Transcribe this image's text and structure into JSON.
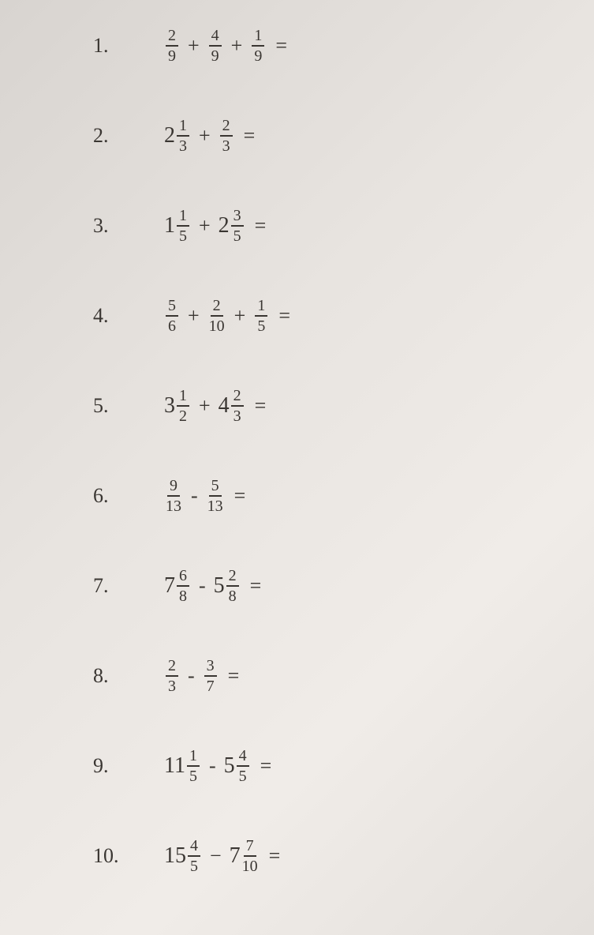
{
  "problems": [
    {
      "number": "1.",
      "terms": [
        {
          "type": "frac",
          "num": "2",
          "den": "9"
        },
        {
          "type": "op",
          "val": "+"
        },
        {
          "type": "frac",
          "num": "4",
          "den": "9"
        },
        {
          "type": "op",
          "val": "+"
        },
        {
          "type": "frac",
          "num": "1",
          "den": "9"
        },
        {
          "type": "eq",
          "val": "="
        }
      ]
    },
    {
      "number": "2.",
      "terms": [
        {
          "type": "mixed",
          "whole": "2",
          "num": "1",
          "den": "3"
        },
        {
          "type": "op",
          "val": "+"
        },
        {
          "type": "frac",
          "num": "2",
          "den": "3"
        },
        {
          "type": "eq",
          "val": "="
        }
      ]
    },
    {
      "number": "3.",
      "terms": [
        {
          "type": "mixed",
          "whole": "1",
          "num": "1",
          "den": "5"
        },
        {
          "type": "op",
          "val": "+"
        },
        {
          "type": "mixed",
          "whole": "2",
          "num": "3",
          "den": "5"
        },
        {
          "type": "eq",
          "val": "="
        }
      ]
    },
    {
      "number": "4.",
      "terms": [
        {
          "type": "frac",
          "num": "5",
          "den": "6"
        },
        {
          "type": "op",
          "val": "+"
        },
        {
          "type": "frac",
          "num": "2",
          "den": "10"
        },
        {
          "type": "op",
          "val": "+"
        },
        {
          "type": "frac",
          "num": "1",
          "den": "5"
        },
        {
          "type": "eq",
          "val": "="
        }
      ]
    },
    {
      "number": "5.",
      "terms": [
        {
          "type": "mixed",
          "whole": "3",
          "num": "1",
          "den": "2"
        },
        {
          "type": "op",
          "val": "+"
        },
        {
          "type": "mixed",
          "whole": "4",
          "num": "2",
          "den": "3"
        },
        {
          "type": "eq",
          "val": "="
        }
      ]
    },
    {
      "number": "6.",
      "terms": [
        {
          "type": "frac",
          "num": "9",
          "den": "13"
        },
        {
          "type": "op",
          "val": "-"
        },
        {
          "type": "frac",
          "num": "5",
          "den": "13"
        },
        {
          "type": "eq",
          "val": "="
        }
      ]
    },
    {
      "number": "7.",
      "terms": [
        {
          "type": "mixed",
          "whole": "7",
          "num": "6",
          "den": "8"
        },
        {
          "type": "op",
          "val": "-"
        },
        {
          "type": "mixed",
          "whole": "5",
          "num": "2",
          "den": "8"
        },
        {
          "type": "eq",
          "val": "="
        }
      ]
    },
    {
      "number": "8.",
      "terms": [
        {
          "type": "frac",
          "num": "2",
          "den": "3"
        },
        {
          "type": "op",
          "val": "-"
        },
        {
          "type": "frac",
          "num": "3",
          "den": "7"
        },
        {
          "type": "eq",
          "val": "="
        }
      ]
    },
    {
      "number": "9.",
      "terms": [
        {
          "type": "mixed",
          "whole": "11",
          "num": "1",
          "den": "5"
        },
        {
          "type": "op",
          "val": "-"
        },
        {
          "type": "mixed",
          "whole": "5",
          "num": "4",
          "den": "5"
        },
        {
          "type": "eq",
          "val": "="
        }
      ]
    },
    {
      "number": "10.",
      "terms": [
        {
          "type": "mixed",
          "whole": "15",
          "num": "4",
          "den": "5"
        },
        {
          "type": "op",
          "val": "−"
        },
        {
          "type": "mixed",
          "whole": "7",
          "num": "7",
          "den": "10"
        },
        {
          "type": "eq",
          "val": "="
        }
      ]
    }
  ]
}
